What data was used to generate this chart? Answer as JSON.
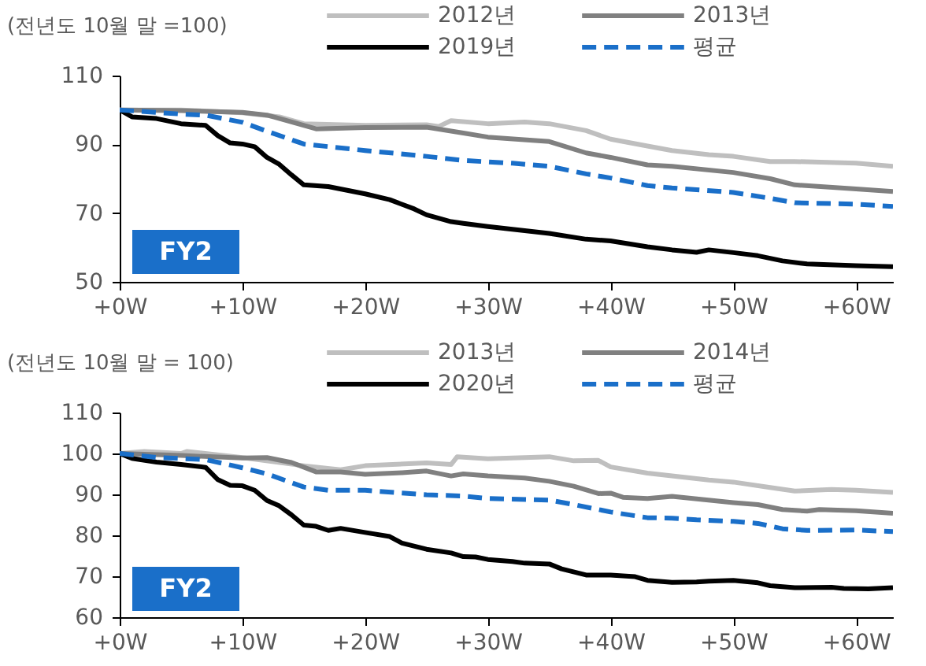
{
  "chart_data": [
    {
      "type": "line",
      "ylabel": "(전년도 10월 말 =100)",
      "annotations": [
        "FY2"
      ],
      "legend": "top",
      "xlim": [
        0,
        63
      ],
      "xticks": [
        {
          "value": 0,
          "label": "+0W"
        },
        {
          "value": 10,
          "label": "+10W"
        },
        {
          "value": 20,
          "label": "+20W"
        },
        {
          "value": 30,
          "label": "+30W"
        },
        {
          "value": 40,
          "label": "+40W"
        },
        {
          "value": 50,
          "label": "+50W"
        },
        {
          "value": 60,
          "label": "+60W"
        }
      ],
      "ylim": [
        50,
        110
      ],
      "yticks": [
        50,
        70,
        90,
        110
      ],
      "series": [
        {
          "name": "2012년",
          "color": "#bfbfbf",
          "line_style": "solid",
          "x": [
            0,
            5,
            10,
            13,
            15,
            20,
            25,
            26,
            27,
            30,
            33,
            35,
            38,
            40,
            43,
            45,
            48,
            50,
            53,
            55,
            60,
            63
          ],
          "values": [
            100,
            100,
            99.2,
            98,
            96,
            95.5,
            95.7,
            95.2,
            96.9,
            96,
            96.5,
            96,
            94,
            91.5,
            89.5,
            88.2,
            87,
            86.5,
            85,
            85,
            84.5,
            83.6
          ]
        },
        {
          "name": "2013년",
          "color": "#808080",
          "line_style": "solid",
          "x": [
            0,
            5,
            10,
            12,
            14,
            16,
            20,
            25,
            28,
            30,
            35,
            38,
            40,
            43,
            45,
            50,
            53,
            55,
            60,
            63
          ],
          "values": [
            100,
            99.8,
            99.3,
            98.5,
            96.5,
            94.5,
            94.9,
            95,
            93.3,
            92.1,
            90.8,
            87.5,
            86.2,
            84,
            83.6,
            81.8,
            80,
            78.2,
            77,
            76.3
          ]
        },
        {
          "name": "2019년",
          "color": "#000000",
          "line_style": "solid",
          "x": [
            0,
            1,
            3,
            5,
            7,
            8,
            9,
            10,
            11,
            12,
            13,
            14,
            15,
            17,
            20,
            22,
            24,
            25,
            27,
            28,
            30,
            33,
            35,
            38,
            40,
            43,
            45,
            47,
            48,
            50,
            52,
            54,
            56,
            60,
            63
          ],
          "values": [
            100,
            98,
            97.5,
            96,
            95.5,
            92.5,
            90.4,
            90.1,
            89.3,
            86.2,
            84.2,
            81.1,
            78.2,
            77.7,
            75.6,
            73.9,
            71.2,
            69.5,
            67.5,
            67,
            66.1,
            64.9,
            64.1,
            62.4,
            61.9,
            60.2,
            59.3,
            58.6,
            59.3,
            58.5,
            57.6,
            56.1,
            55.2,
            54.7,
            54.4
          ]
        },
        {
          "name": "평균",
          "color": "#1a6fc9",
          "line_style": "dashed",
          "x": [
            0,
            5,
            7,
            10,
            12,
            15,
            20,
            25,
            28,
            32,
            35,
            38,
            40,
            43,
            45,
            50,
            53,
            55,
            60,
            63
          ],
          "values": [
            100,
            98.8,
            98.5,
            96.4,
            93.8,
            90.1,
            88.2,
            86.5,
            85.3,
            84.5,
            83.6,
            81.4,
            80.2,
            78,
            77.3,
            76,
            74.3,
            73,
            72.6,
            71.9
          ]
        }
      ]
    },
    {
      "type": "line",
      "ylabel": "(전년도 10월 말 = 100)",
      "annotations": [
        "FY2"
      ],
      "legend": "top",
      "xlim": [
        0,
        63
      ],
      "xticks": [
        {
          "value": 0,
          "label": "+0W"
        },
        {
          "value": 10,
          "label": "+10W"
        },
        {
          "value": 20,
          "label": "+20W"
        },
        {
          "value": 30,
          "label": "+30W"
        },
        {
          "value": 40,
          "label": "+40W"
        },
        {
          "value": 50,
          "label": "+50W"
        },
        {
          "value": 60,
          "label": "+60W"
        }
      ],
      "ylim": [
        60,
        110
      ],
      "yticks": [
        60,
        70,
        80,
        90,
        100,
        110
      ],
      "series": [
        {
          "name": "2013년",
          "color": "#bfbfbf",
          "line_style": "solid",
          "x": [
            0,
            2,
            5,
            5.5,
            10,
            15,
            18,
            20,
            25,
            27,
            27.5,
            30,
            35,
            37,
            39,
            40,
            43,
            45,
            48,
            50,
            53,
            55,
            58,
            60,
            63
          ],
          "values": [
            100,
            100.5,
            100,
            100.5,
            99,
            97,
            96,
            97,
            97.7,
            97.3,
            99.2,
            98.7,
            99.2,
            98.2,
            98.3,
            96.7,
            95.2,
            94.5,
            93.5,
            93,
            91.7,
            90.8,
            91.2,
            91,
            90.5
          ]
        },
        {
          "name": "2014년",
          "color": "#808080",
          "line_style": "solid",
          "x": [
            0,
            5,
            10,
            12,
            14,
            16,
            18,
            20,
            23,
            25,
            27,
            28,
            30,
            33,
            35,
            37,
            39,
            40,
            41,
            43,
            45,
            50,
            52,
            54,
            56,
            57,
            60,
            63
          ],
          "values": [
            100,
            99.5,
            98.9,
            99,
            97.8,
            95.5,
            95.5,
            94.9,
            95.3,
            95.7,
            94.5,
            95,
            94.5,
            94,
            93.2,
            92,
            90.2,
            90.3,
            89.3,
            89,
            89.5,
            88,
            87.5,
            86.3,
            85.9,
            86.3,
            86,
            85.4
          ]
        },
        {
          "name": "2020년",
          "color": "#000000",
          "line_style": "solid",
          "x": [
            0,
            1,
            3,
            5,
            7,
            8,
            9,
            10,
            11,
            12,
            13,
            14,
            15,
            16,
            17,
            18,
            20,
            22,
            23,
            25,
            27,
            28,
            29,
            30,
            32,
            33,
            35,
            36,
            38,
            40,
            42,
            43,
            45,
            47,
            48,
            50,
            52,
            53,
            55,
            58,
            59,
            61,
            63
          ],
          "values": [
            100,
            98.8,
            97.9,
            97.3,
            96.6,
            93.6,
            92.2,
            92.1,
            91,
            88.5,
            87.2,
            85,
            82.5,
            82.2,
            81.2,
            81.7,
            80.7,
            79.7,
            78.1,
            76.6,
            75.7,
            74.8,
            74.7,
            74.1,
            73.6,
            73.2,
            73,
            71.8,
            70.3,
            70.3,
            69.9,
            69,
            68.5,
            68.6,
            68.8,
            69,
            68.4,
            67.7,
            67.2,
            67.3,
            67,
            66.9,
            67.2
          ]
        },
        {
          "name": "평균",
          "color": "#1a6fc9",
          "line_style": "dashed",
          "x": [
            0,
            3,
            7,
            10,
            12,
            15,
            17,
            20,
            25,
            28,
            30,
            35,
            37,
            40,
            43,
            45,
            47,
            50,
            52,
            54,
            56,
            60,
            63
          ],
          "values": [
            100,
            99,
            98.5,
            96.5,
            95,
            91.8,
            91,
            91,
            89.9,
            89.6,
            89,
            88.6,
            87.5,
            85.7,
            84.3,
            84.2,
            83.8,
            83.4,
            82.9,
            81.6,
            81.2,
            81.3,
            80.9
          ]
        }
      ]
    }
  ]
}
